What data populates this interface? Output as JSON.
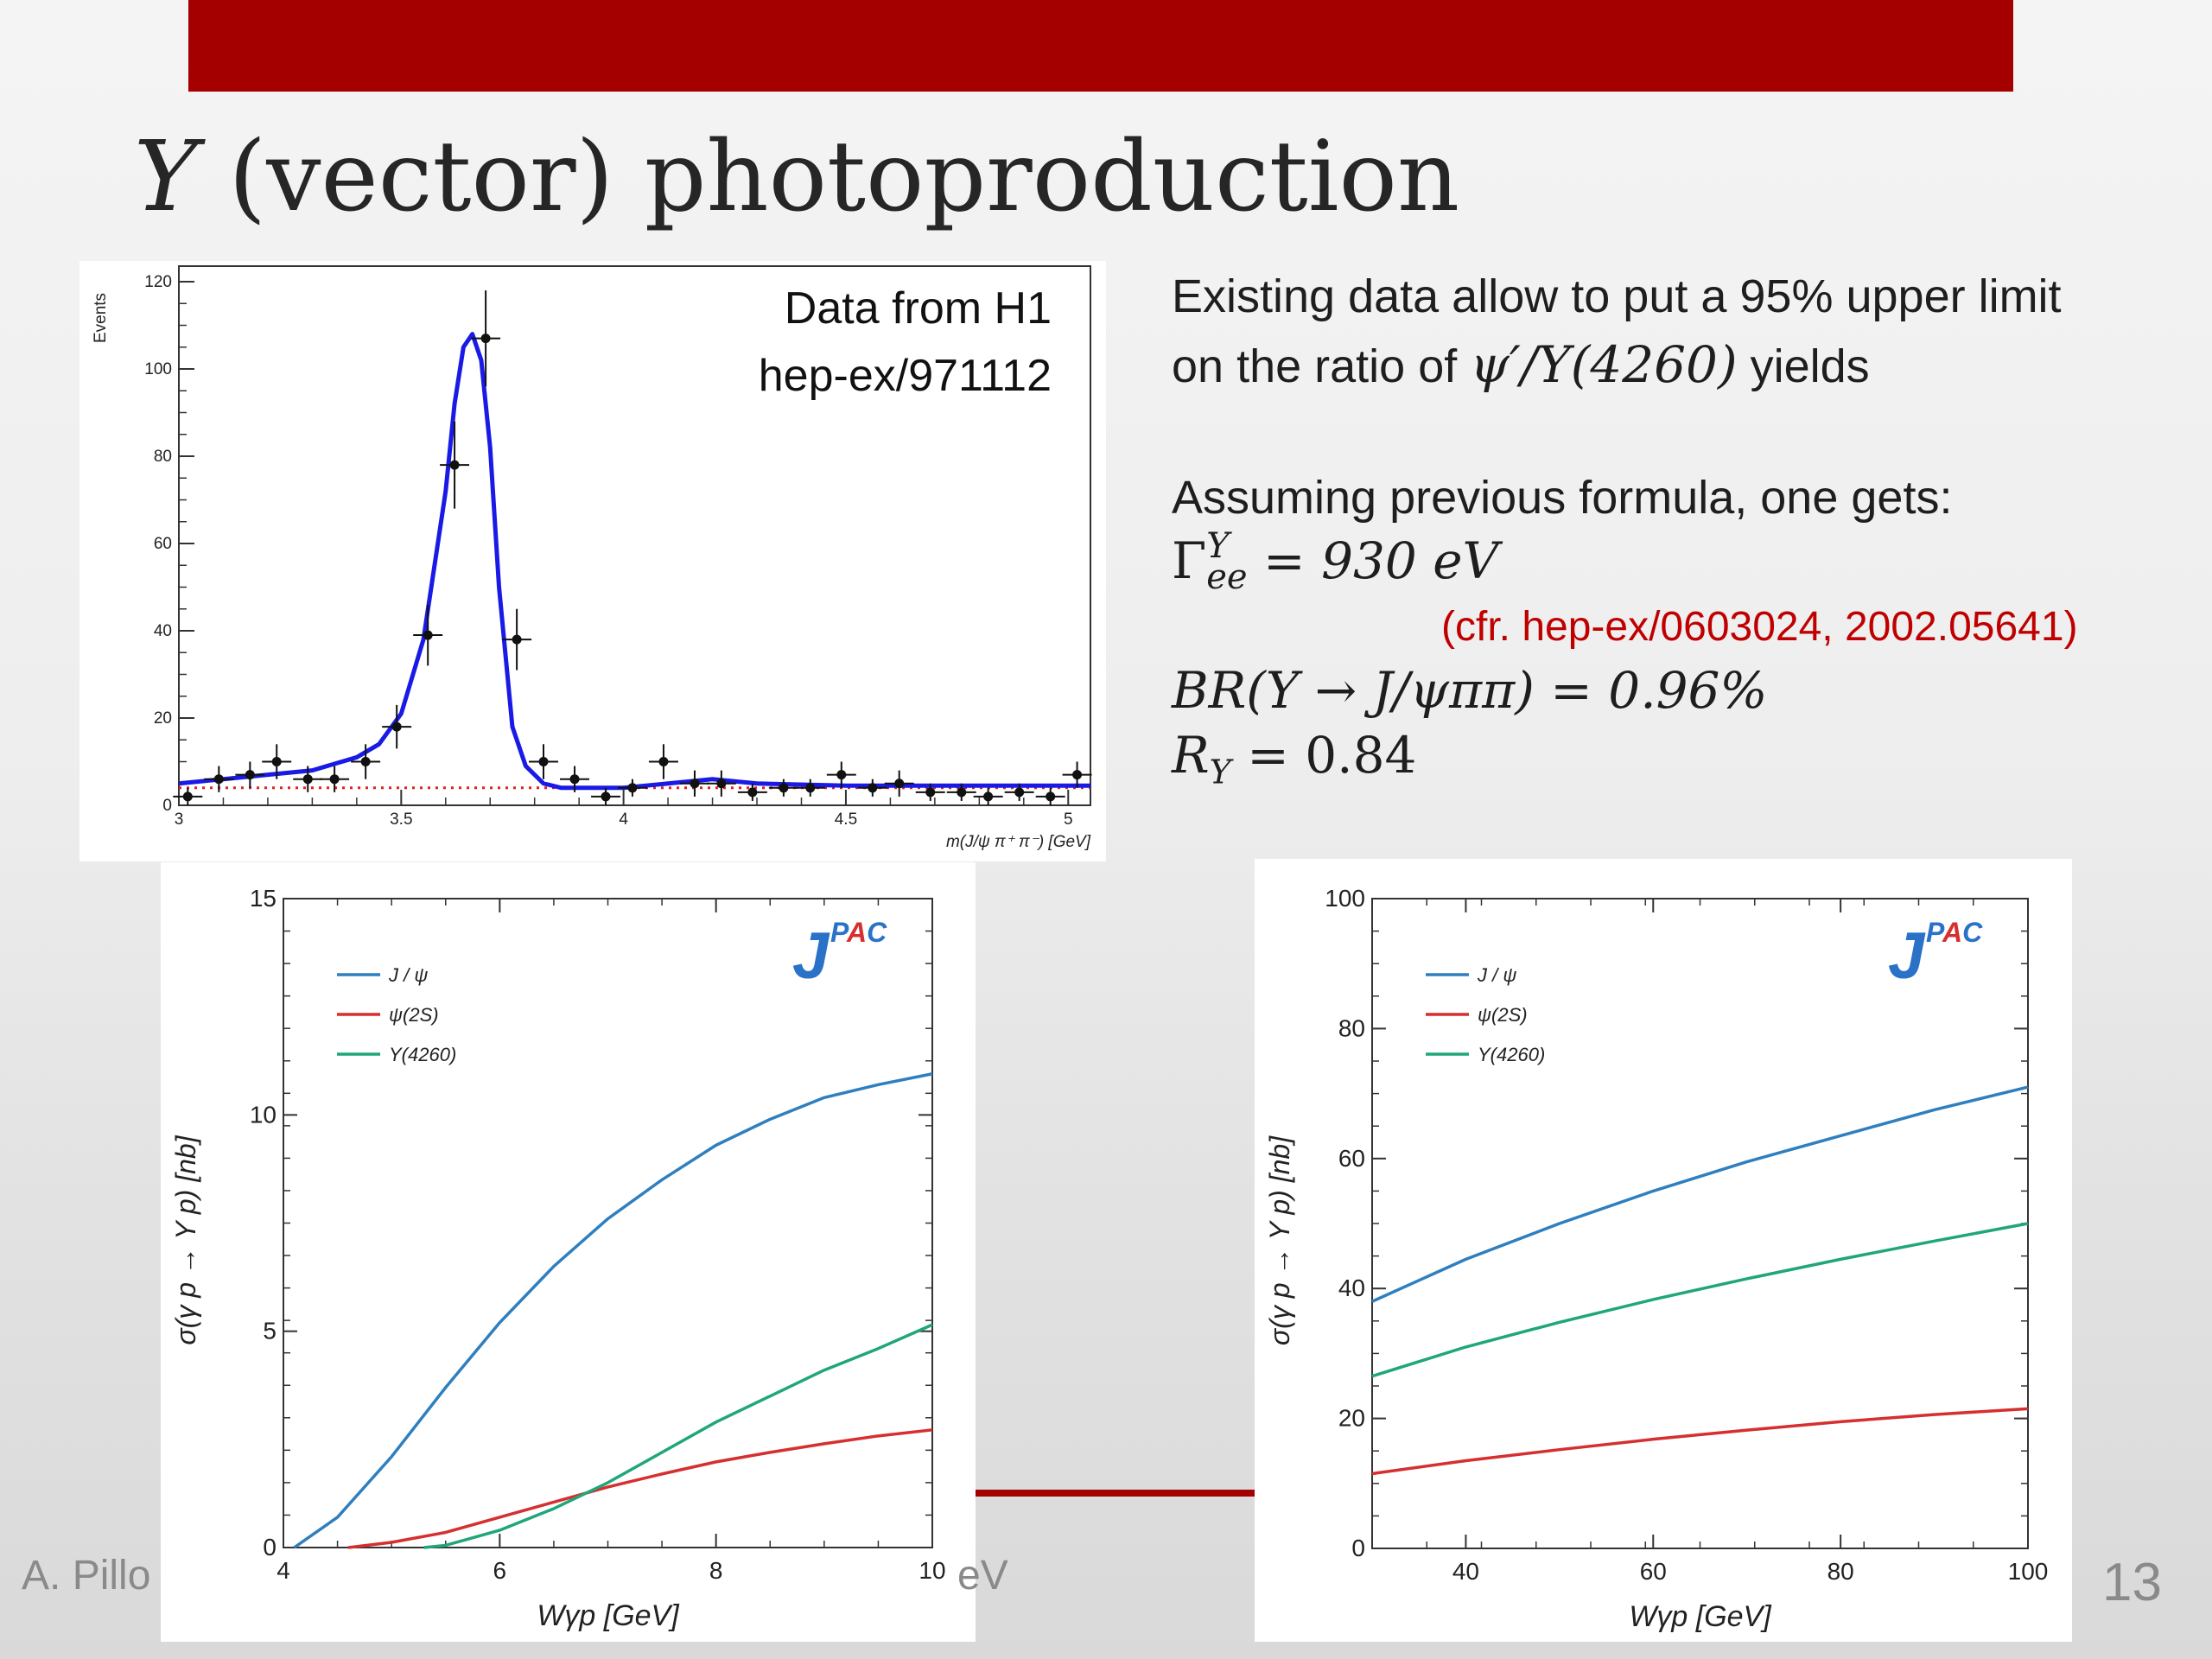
{
  "slide": {
    "title_symbol": "Y",
    "title_rest": " (vector) photoproduction",
    "footer_left": "A. Pillo",
    "footer_right": "eV",
    "page_number": "13",
    "colors": {
      "banner": "#a50000",
      "note": "#c00000"
    }
  },
  "text": {
    "line1": "Existing data allow to put a 95% upper limit",
    "line2_pre": "on the ratio of ",
    "line2_math": "ψ′/Y(4260)",
    "line2_post": " yields",
    "line3": "Assuming previous formula, one gets:",
    "gamma_sym": "Γ",
    "gamma_sup": "Y",
    "gamma_sub": "ee",
    "gamma_rest": " = 930 eV",
    "cfr": "(cfr. hep-ex/0603024, 2002.05641)",
    "br": "BR(Y → J/ψππ) = 0.96%",
    "ry_sym": "R",
    "ry_sub": "Y",
    "ry_rest": " = 0.84"
  },
  "chart_data": [
    {
      "type": "scatter",
      "annotation": [
        "Data from H1",
        "hep-ex/971112"
      ],
      "xlabel": "m(J/ψ π⁺ π⁻) [GeV]",
      "ylabel": "Events",
      "xlim": [
        3,
        5.05
      ],
      "ylim": [
        0,
        120
      ],
      "xticks": [
        "3",
        "3.5",
        "4",
        "4.5",
        "5"
      ],
      "yticks": [
        "0",
        "20",
        "40",
        "60",
        "80",
        "100",
        "120"
      ],
      "points": {
        "x": [
          3.02,
          3.09,
          3.16,
          3.22,
          3.29,
          3.35,
          3.42,
          3.49,
          3.56,
          3.62,
          3.69,
          3.76,
          3.82,
          3.89,
          3.96,
          4.02,
          4.09,
          4.16,
          4.22,
          4.29,
          4.36,
          4.42,
          4.49,
          4.56,
          4.62,
          4.69,
          4.76,
          4.82,
          4.89,
          4.96,
          5.02
        ],
        "y": [
          2,
          6,
          7,
          10,
          6,
          6,
          10,
          18,
          39,
          78,
          107,
          38,
          10,
          6,
          2,
          4,
          10,
          5,
          5,
          3,
          4,
          4,
          7,
          4,
          5,
          3,
          3,
          2,
          3,
          2,
          7
        ],
        "yerr": [
          2,
          3,
          3,
          4,
          3,
          3,
          4,
          5,
          7,
          10,
          11,
          7,
          4,
          3,
          2,
          2,
          4,
          3,
          3,
          2,
          2,
          2,
          3,
          2,
          3,
          2,
          2,
          2,
          2,
          2,
          3
        ]
      },
      "fit": {
        "x": [
          3.0,
          3.1,
          3.2,
          3.3,
          3.4,
          3.45,
          3.5,
          3.55,
          3.6,
          3.62,
          3.64,
          3.66,
          3.68,
          3.7,
          3.72,
          3.75,
          3.78,
          3.82,
          3.86,
          3.9,
          4.0,
          4.1,
          4.2,
          4.3,
          4.5,
          4.7,
          5.05
        ],
        "y": [
          5,
          6,
          7,
          8,
          11,
          14,
          21,
          38,
          72,
          92,
          105,
          108,
          102,
          82,
          50,
          18,
          9,
          5,
          4,
          4,
          4,
          5,
          6,
          5,
          4.5,
          4.5,
          4.5
        ]
      },
      "background_level": 4
    },
    {
      "type": "line",
      "logo": "J",
      "logo_sup": "PAC",
      "xlabel": "Wγp [GeV]",
      "ylabel": "σ(γ p → Y p) [nb]",
      "xlim": [
        4,
        10
      ],
      "ylim": [
        0,
        15
      ],
      "xticks": [
        "4",
        "6",
        "8",
        "10"
      ],
      "yticks": [
        "0",
        "5",
        "10",
        "15"
      ],
      "series": [
        {
          "name": "J / ψ",
          "color": "#2f7fbf",
          "x": [
            4.1,
            4.5,
            5,
            5.5,
            6,
            6.5,
            7,
            7.5,
            8,
            8.5,
            9,
            9.5,
            10
          ],
          "y": [
            0,
            0.7,
            2.1,
            3.7,
            5.2,
            6.5,
            7.6,
            8.5,
            9.3,
            9.9,
            10.4,
            10.7,
            10.95
          ]
        },
        {
          "name": "ψ(2S)",
          "color": "#d62f2f",
          "x": [
            4.6,
            5,
            5.5,
            6,
            6.5,
            7,
            7.5,
            8,
            8.5,
            9,
            9.5,
            10
          ],
          "y": [
            0,
            0.12,
            0.35,
            0.7,
            1.05,
            1.4,
            1.7,
            1.98,
            2.2,
            2.4,
            2.58,
            2.72
          ]
        },
        {
          "name": "Y(4260)",
          "color": "#1fa67a",
          "x": [
            5.3,
            5.5,
            6,
            6.5,
            7,
            7.5,
            8,
            8.5,
            9,
            9.5,
            10
          ],
          "y": [
            0,
            0.05,
            0.4,
            0.9,
            1.5,
            2.2,
            2.9,
            3.5,
            4.1,
            4.6,
            5.15
          ]
        }
      ]
    },
    {
      "type": "line",
      "logo": "J",
      "logo_sup": "PAC",
      "xlabel": "Wγp [GeV]",
      "ylabel": "σ(γ p → Y p) [nb]",
      "xlim": [
        30,
        100
      ],
      "ylim": [
        0,
        100
      ],
      "xticks": [
        "40",
        "60",
        "80",
        "100"
      ],
      "yticks": [
        "0",
        "20",
        "40",
        "60",
        "80",
        "100"
      ],
      "series": [
        {
          "name": "J / ψ",
          "color": "#2f7fbf",
          "x": [
            30,
            40,
            50,
            60,
            70,
            80,
            90,
            100
          ],
          "y": [
            38,
            44.5,
            50,
            55,
            59.5,
            63.5,
            67.5,
            71
          ]
        },
        {
          "name": "ψ(2S)",
          "color": "#d62f2f",
          "x": [
            30,
            40,
            50,
            60,
            70,
            80,
            90,
            100
          ],
          "y": [
            11.5,
            13.5,
            15.2,
            16.8,
            18.2,
            19.5,
            20.6,
            21.5
          ]
        },
        {
          "name": "Y(4260)",
          "color": "#1fa67a",
          "x": [
            30,
            40,
            50,
            60,
            70,
            80,
            90,
            100
          ],
          "y": [
            26.5,
            31,
            34.8,
            38.3,
            41.5,
            44.5,
            47.3,
            50
          ]
        }
      ]
    }
  ]
}
